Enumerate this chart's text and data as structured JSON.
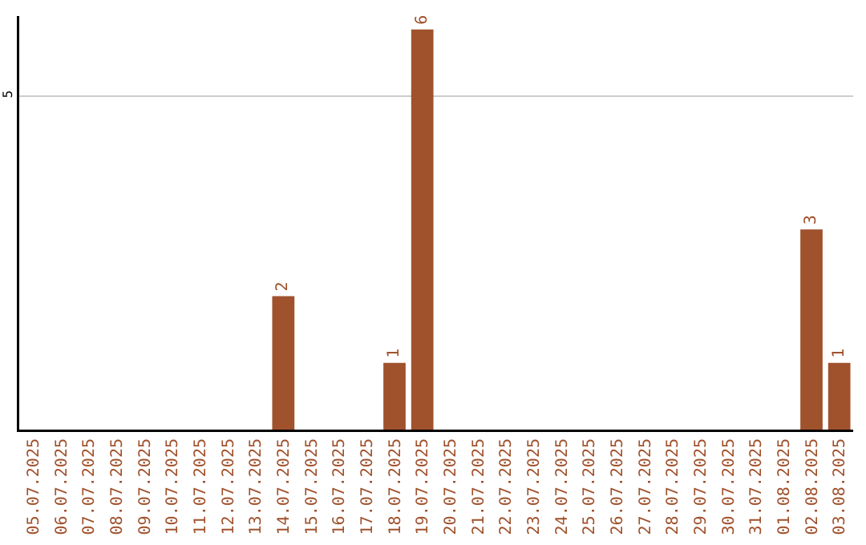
{
  "chart_data": {
    "type": "bar",
    "categories": [
      "05.07.2025",
      "06.07.2025",
      "07.07.2025",
      "08.07.2025",
      "09.07.2025",
      "10.07.2025",
      "11.07.2025",
      "12.07.2025",
      "13.07.2025",
      "14.07.2025",
      "15.07.2025",
      "16.07.2025",
      "17.07.2025",
      "18.07.2025",
      "19.07.2025",
      "20.07.2025",
      "21.07.2025",
      "22.07.2025",
      "23.07.2025",
      "24.07.2025",
      "25.07.2025",
      "26.07.2025",
      "27.07.2025",
      "28.07.2025",
      "29.07.2025",
      "30.07.2025",
      "31.07.2025",
      "01.08.2025",
      "02.08.2025",
      "03.08.2025"
    ],
    "values": [
      0,
      0,
      0,
      0,
      0,
      0,
      0,
      0,
      0,
      2,
      0,
      0,
      0,
      1,
      6,
      0,
      0,
      0,
      0,
      0,
      0,
      0,
      0,
      0,
      0,
      0,
      0,
      0,
      3,
      1
    ],
    "value_labels": [
      null,
      null,
      null,
      null,
      null,
      null,
      null,
      null,
      null,
      "2",
      null,
      null,
      null,
      "1",
      "6",
      null,
      null,
      null,
      null,
      null,
      null,
      null,
      null,
      null,
      null,
      null,
      null,
      null,
      "3",
      "1"
    ],
    "color": "#a0522d",
    "ylim": [
      0,
      6.2
    ],
    "yticks": [
      5
    ],
    "grid": "y"
  }
}
